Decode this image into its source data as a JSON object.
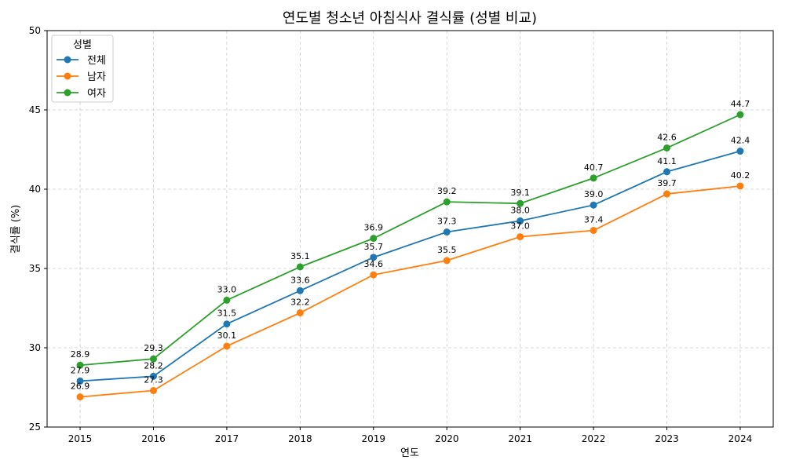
{
  "chart_data": {
    "type": "line",
    "title": "연도별 청소년 아침식사 결식률 (성별 비교)",
    "xlabel": "연도",
    "ylabel": "결식률 (%)",
    "x": [
      2015,
      2016,
      2017,
      2018,
      2019,
      2020,
      2021,
      2022,
      2023,
      2024
    ],
    "x_tick_labels": [
      "2015",
      "2016",
      "2017",
      "2018",
      "2019",
      "2020",
      "2021",
      "2022",
      "2023",
      "2024"
    ],
    "ylim": [
      25,
      50
    ],
    "y_ticks": [
      25,
      30,
      35,
      40,
      45,
      50
    ],
    "y_tick_labels": [
      "25",
      "30",
      "35",
      "40",
      "45",
      "50"
    ],
    "grid": true,
    "legend": {
      "title": "성별",
      "position": "top-left"
    },
    "series": [
      {
        "name": "전체",
        "color": "#1f77b4",
        "values": [
          27.9,
          28.2,
          31.5,
          33.6,
          35.7,
          37.3,
          38.0,
          39.0,
          41.1,
          42.4
        ],
        "labels": [
          "27.9",
          "28.2",
          "31.5",
          "33.6",
          "35.7",
          "37.3",
          "38.0",
          "39.0",
          "41.1",
          "42.4"
        ]
      },
      {
        "name": "남자",
        "color": "#ff7f0e",
        "values": [
          26.9,
          27.3,
          30.1,
          32.2,
          34.6,
          35.5,
          37.0,
          37.4,
          39.7,
          40.2
        ],
        "labels": [
          "26.9",
          "27.3",
          "30.1",
          "32.2",
          "34.6",
          "35.5",
          "37.0",
          "37.4",
          "39.7",
          "40.2"
        ]
      },
      {
        "name": "여자",
        "color": "#2ca02c",
        "values": [
          28.9,
          29.3,
          33.0,
          35.1,
          36.9,
          39.2,
          39.1,
          40.7,
          42.6,
          44.7
        ],
        "labels": [
          "28.9",
          "29.3",
          "33.0",
          "35.1",
          "36.9",
          "39.2",
          "39.1",
          "40.7",
          "42.6",
          "44.7"
        ]
      }
    ]
  }
}
